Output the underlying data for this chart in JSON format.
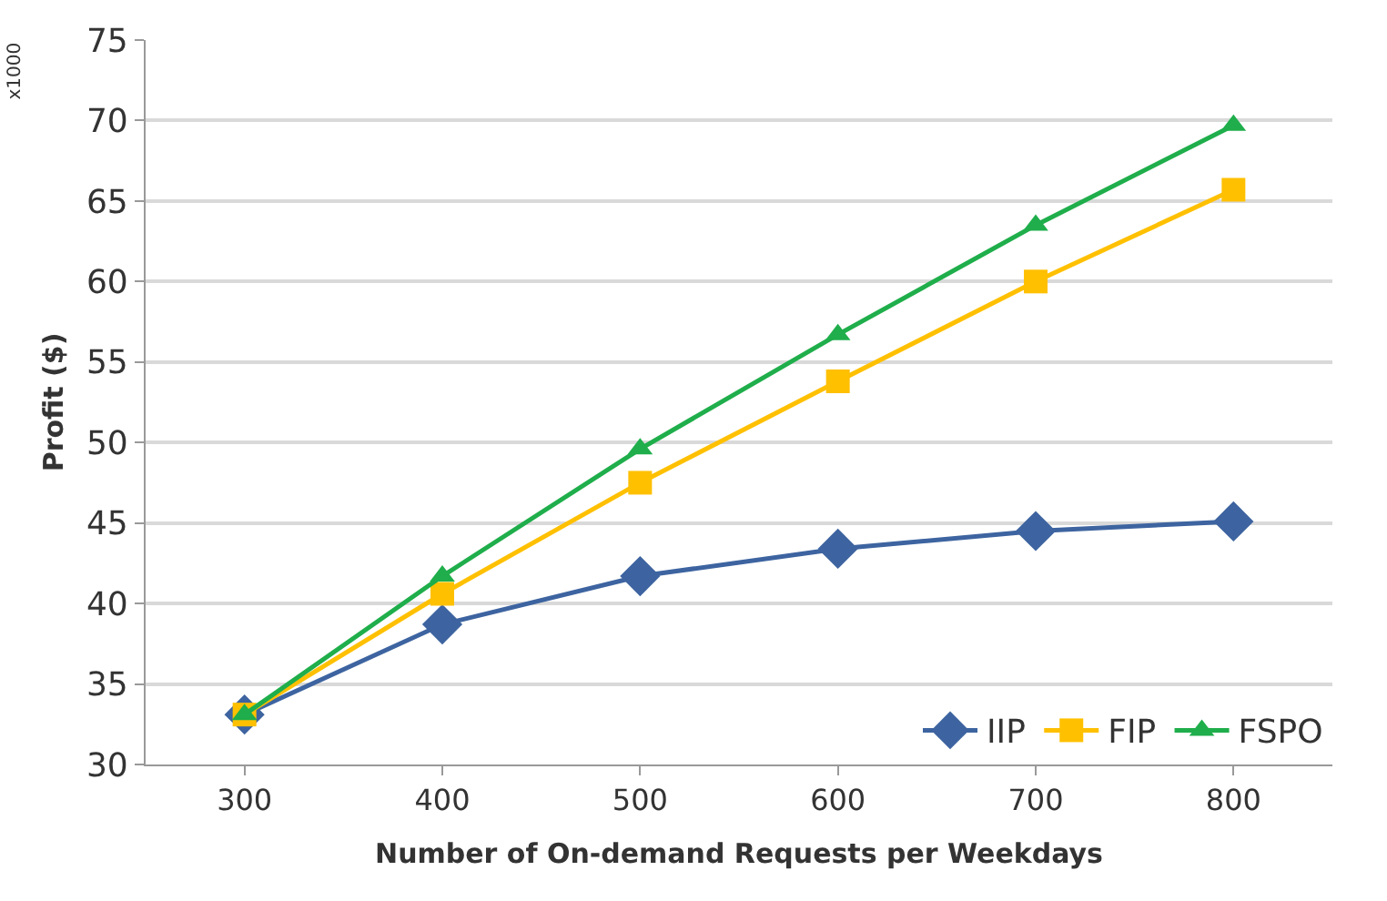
{
  "chart_data": {
    "type": "line",
    "xlabel": "Number of On-demand Requests per Weekdays",
    "ylabel": "Profit ($)",
    "annotations": [
      "x1000"
    ],
    "categories": [
      "300",
      "400",
      "500",
      "600",
      "700",
      "800"
    ],
    "series": [
      {
        "name": "IIP",
        "color": "#3d64a0",
        "marker": "diamond",
        "values": [
          33.1,
          38.7,
          41.7,
          43.4,
          44.5,
          45.1
        ]
      },
      {
        "name": "FIP",
        "color": "#ffc000",
        "marker": "square",
        "values": [
          33.1,
          40.6,
          47.5,
          53.8,
          60.0,
          65.7
        ]
      },
      {
        "name": "FSPO",
        "color": "#1fae4b",
        "marker": "triangle",
        "values": [
          33.1,
          41.7,
          49.6,
          56.7,
          63.5,
          69.7
        ]
      }
    ],
    "ylim": [
      30,
      75
    ],
    "yticks": [
      30,
      35,
      40,
      45,
      50,
      55,
      60,
      65,
      70,
      75
    ],
    "grid": "y",
    "legend": "bottom right"
  }
}
